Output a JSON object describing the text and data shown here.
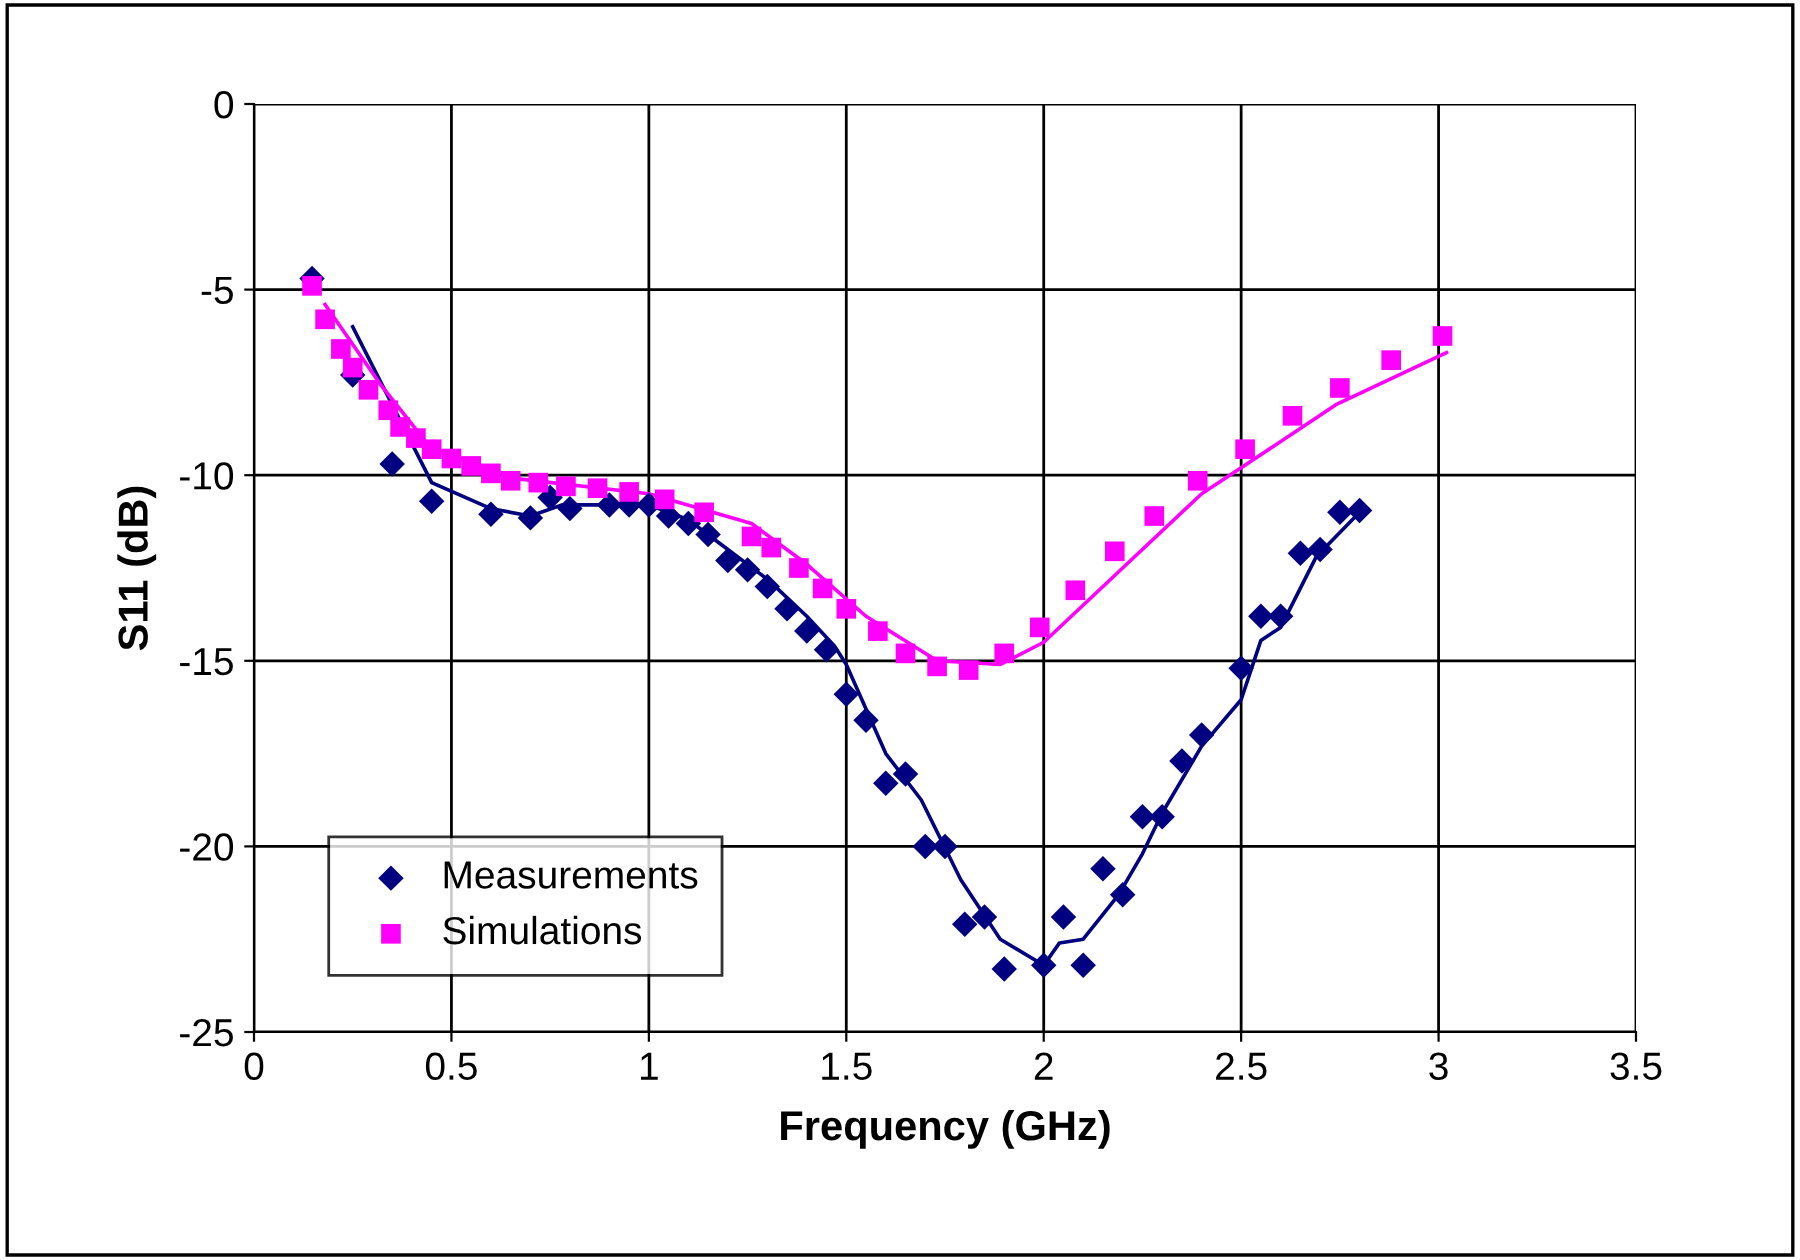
{
  "chart_data": {
    "type": "scatter",
    "xlabel": "Frequency (GHz)",
    "ylabel": "S11 (dB)",
    "xlim": [
      0,
      3.5
    ],
    "ylim": [
      -25,
      0
    ],
    "xticks": [
      0,
      0.5,
      1,
      1.5,
      2,
      2.5,
      3,
      3.5
    ],
    "yticks": [
      -25,
      -20,
      -15,
      -10,
      -5,
      0
    ],
    "grid": true,
    "legend": "bottom left",
    "series": [
      {
        "name": "Measurements",
        "marker": "diamond",
        "color": "#000080",
        "x": [
          0.147,
          0.25,
          0.35,
          0.45,
          0.6,
          0.7,
          0.75,
          0.8,
          0.9,
          0.95,
          1.0,
          1.05,
          1.1,
          1.15,
          1.2,
          1.25,
          1.3,
          1.35,
          1.4,
          1.45,
          1.5,
          1.55,
          1.6,
          1.65,
          1.7,
          1.75,
          1.8,
          1.85,
          1.9,
          2.0,
          2.05,
          2.1,
          2.15,
          2.2,
          2.25,
          2.3,
          2.35,
          2.4,
          2.5,
          2.55,
          2.6,
          2.65,
          2.7,
          2.75,
          2.8
        ],
        "values": [
          -4.7,
          -7.3,
          -9.7,
          -10.7,
          -11.05,
          -11.15,
          -10.6,
          -10.9,
          -10.8,
          -10.8,
          -10.8,
          -11.1,
          -11.3,
          -11.6,
          -12.3,
          -12.55,
          -13.0,
          -13.6,
          -14.2,
          -14.7,
          -15.9,
          -16.6,
          -18.3,
          -18.05,
          -20.0,
          -20.0,
          -22.1,
          -21.9,
          -23.3,
          -23.2,
          -21.9,
          -23.2,
          -20.6,
          -21.3,
          -19.2,
          -19.2,
          -17.7,
          -17.0,
          -15.2,
          -13.8,
          -13.8,
          -12.1,
          -12.0,
          -11.0,
          -10.95
        ]
      },
      {
        "name": "Simulations",
        "marker": "square",
        "color": "#ff00ff",
        "x": [
          0.147,
          0.18,
          0.22,
          0.25,
          0.29,
          0.34,
          0.37,
          0.41,
          0.45,
          0.5,
          0.55,
          0.6,
          0.65,
          0.72,
          0.79,
          0.87,
          0.95,
          1.04,
          1.14,
          1.26,
          1.31,
          1.38,
          1.44,
          1.5,
          1.58,
          1.65,
          1.73,
          1.81,
          1.9,
          1.99,
          2.08,
          2.18,
          2.28,
          2.39,
          2.51,
          2.63,
          2.75,
          2.88,
          3.01
        ],
        "values": [
          -4.9,
          -5.8,
          -6.6,
          -7.1,
          -7.7,
          -8.25,
          -8.7,
          -9.0,
          -9.3,
          -9.55,
          -9.75,
          -9.95,
          -10.15,
          -10.2,
          -10.3,
          -10.35,
          -10.45,
          -10.65,
          -11.0,
          -11.65,
          -11.95,
          -12.5,
          -13.05,
          -13.6,
          -14.2,
          -14.8,
          -15.15,
          -15.25,
          -14.8,
          -14.1,
          -13.1,
          -12.05,
          -11.1,
          -10.15,
          -9.3,
          -8.4,
          -7.65,
          -6.9,
          -6.25
        ]
      },
      {
        "type": "line",
        "marker": "none",
        "color": "#000080",
        "x": [
          0.25,
          0.45,
          0.6,
          0.7,
          0.78,
          1.0,
          1.1,
          1.2,
          1.3,
          1.4,
          1.47,
          1.5,
          1.6,
          1.69,
          1.79,
          1.89,
          2.0,
          2.04,
          2.1,
          2.19,
          2.25,
          2.3,
          2.4,
          2.5,
          2.55,
          2.6,
          2.69,
          2.8
        ],
        "values": [
          -6.0,
          -10.2,
          -10.9,
          -11.1,
          -10.8,
          -10.8,
          -11.2,
          -12.0,
          -12.8,
          -13.8,
          -14.6,
          -15.1,
          -17.5,
          -18.75,
          -20.9,
          -22.5,
          -23.2,
          -22.6,
          -22.5,
          -21.3,
          -20.2,
          -19.1,
          -17.3,
          -16.05,
          -14.45,
          -14.1,
          -12.2,
          -11.0
        ]
      },
      {
        "type": "line",
        "marker": "none",
        "color": "#ff00ff",
        "x": [
          0.18,
          0.32,
          0.45,
          0.67,
          1.0,
          1.26,
          1.4,
          1.55,
          1.73,
          1.89,
          2.0,
          2.21,
          2.4,
          2.5,
          2.74,
          3.02
        ],
        "values": [
          -5.4,
          -7.55,
          -9.3,
          -10.1,
          -10.5,
          -11.3,
          -12.4,
          -13.8,
          -15.0,
          -15.1,
          -14.5,
          -12.4,
          -10.5,
          -9.8,
          -8.1,
          -6.7
        ]
      }
    ]
  }
}
